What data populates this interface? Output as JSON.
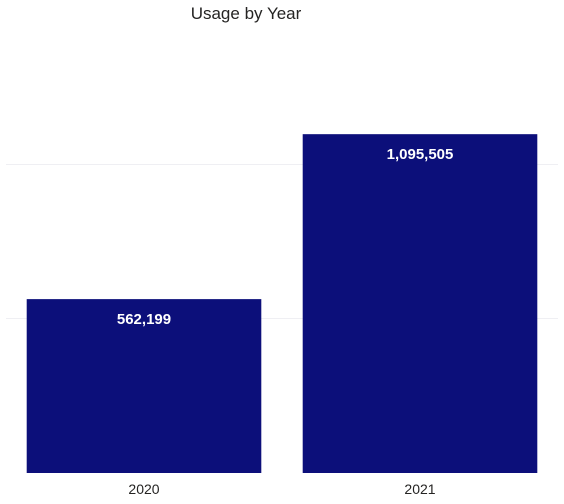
{
  "chart_data": {
    "type": "bar",
    "title": "Usage by Year",
    "categories": [
      "2020",
      "2021"
    ],
    "values": [
      562199,
      1095505
    ],
    "data_labels": [
      "562,199",
      "1,095,505"
    ],
    "xlabel": "",
    "ylabel": "",
    "ylim": [
      0,
      1400000
    ],
    "grid": true,
    "bar_color": "#0c0f7a",
    "grid_color": "#efeff3",
    "background_color": "#ffffff"
  }
}
